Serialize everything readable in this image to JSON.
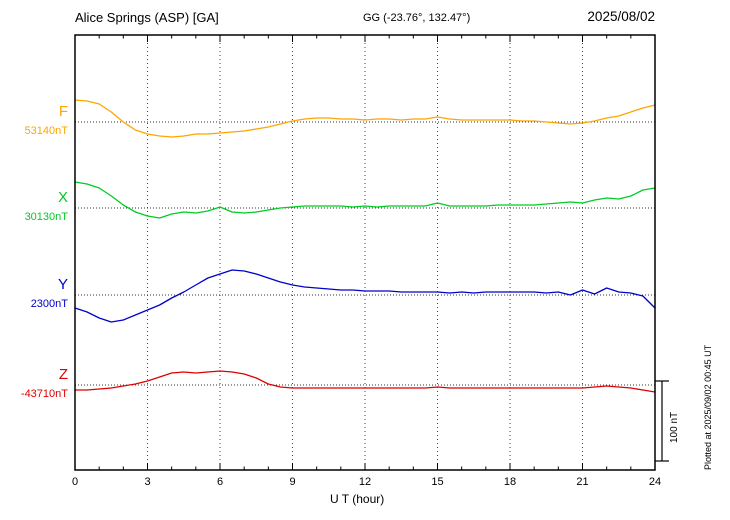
{
  "header": {
    "station": "Alice Springs (ASP)  [GA]",
    "coordinates": "GG (-23.76°, 132.47°)",
    "date": "2025/08/02"
  },
  "side_labels": {
    "plotted_at": "Plotted at 2025/09/02 00:45 UT"
  },
  "chart_data": {
    "type": "line",
    "title": "Alice Springs (ASP) [GA] magnetogram 2025/08/02",
    "xlabel": "U T (hour)",
    "x_range_hours": [
      0,
      24
    ],
    "x_ticks": [
      0,
      3,
      6,
      9,
      12,
      15,
      18,
      21,
      24
    ],
    "sample_step_hours": 0.5,
    "grid": "dotted vertical gridlines every 3 h; dotted horizontal baseline per channel",
    "legend_position": "left channel labels",
    "scale_bar": {
      "label": "100 nT",
      "nT": 100
    },
    "series": [
      {
        "name": "F",
        "color": "#FFA500",
        "base_value_label": "53140nT",
        "base_value_nT": 53140,
        "offsets_nT": [
          27.5,
          26.3,
          22.5,
          12.5,
          0,
          -10,
          -15,
          -17.5,
          -18.8,
          -17.5,
          -15,
          -15,
          -13.8,
          -12.5,
          -11.3,
          -8.8,
          -6.3,
          -2.5,
          1.3,
          3.8,
          5,
          5,
          3.8,
          3.8,
          2.5,
          3.8,
          3.8,
          2.5,
          3.8,
          3.8,
          6.3,
          3.8,
          2.5,
          2.5,
          2.5,
          2.5,
          2.5,
          1.3,
          1.3,
          0,
          -1.3,
          -2.5,
          -1.3,
          1.3,
          5,
          7.5,
          12.5,
          17.5,
          21.3
        ]
      },
      {
        "name": "X",
        "color": "#00CC22",
        "base_value_label": "30130nT",
        "base_value_nT": 30130,
        "offsets_nT": [
          32.5,
          30,
          25,
          15,
          3.8,
          -5,
          -10,
          -12.5,
          -7.5,
          -5,
          -6.3,
          -3.8,
          1.3,
          -5,
          -6.3,
          -5,
          -2.5,
          0,
          1.3,
          2.5,
          2.5,
          2.5,
          2.5,
          1.3,
          2.5,
          1.3,
          2.5,
          2.5,
          2.5,
          2.5,
          6.3,
          2.5,
          2.5,
          2.5,
          2.5,
          3.8,
          3.8,
          3.8,
          3.8,
          5,
          6.3,
          7.5,
          6.3,
          10,
          12.5,
          11.3,
          15,
          22.5,
          25
        ]
      },
      {
        "name": "Y",
        "color": "#0000CC",
        "base_value_label": "2300nT",
        "base_value_nT": 2300,
        "offsets_nT": [
          -16.3,
          -21.3,
          -28.8,
          -33.8,
          -31.3,
          -25,
          -18.8,
          -12.5,
          -3.8,
          3.8,
          12.5,
          21.3,
          26.3,
          31.3,
          30,
          26.3,
          21.3,
          16.3,
          12.5,
          10,
          8.8,
          7.5,
          6.3,
          6.3,
          5,
          5,
          5,
          3.8,
          3.8,
          3.8,
          3.8,
          2.5,
          3.8,
          2.5,
          3.8,
          3.8,
          3.8,
          3.8,
          3.8,
          2.5,
          3.8,
          0,
          6.3,
          1.3,
          8.8,
          3.8,
          2.5,
          -1.3,
          -16.3
        ]
      },
      {
        "name": "Z",
        "color": "#DD0000",
        "base_value_label": "-43710nT",
        "base_value_nT": -43710,
        "offsets_nT": [
          -6.3,
          -6.3,
          -5,
          -3.8,
          -1.3,
          1.3,
          5,
          10,
          15,
          16.3,
          15,
          16.3,
          17.5,
          16.3,
          13.8,
          8.8,
          1.3,
          -2.5,
          -3.8,
          -3.8,
          -3.8,
          -3.8,
          -3.8,
          -3.8,
          -3.8,
          -3.8,
          -3.8,
          -3.8,
          -3.8,
          -3.8,
          -2.5,
          -3.8,
          -3.8,
          -3.8,
          -3.8,
          -3.8,
          -3.8,
          -3.8,
          -3.8,
          -3.8,
          -3.8,
          -3.8,
          -3.8,
          -2.5,
          -1.3,
          -2.5,
          -3.8,
          -6.3,
          -8.8
        ]
      }
    ]
  }
}
